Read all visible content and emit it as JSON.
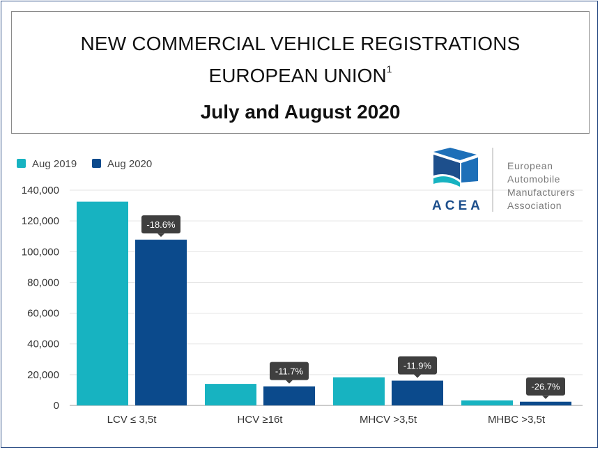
{
  "title": {
    "line1": "NEW COMMERCIAL VEHICLE REGISTRATIONS",
    "line2": "EUROPEAN UNION",
    "line2_sup": "1",
    "line3": "July and August 2020"
  },
  "logo": {
    "acronym": "ACEA",
    "lines": [
      "European",
      "Automobile",
      "Manufacturers",
      "Association"
    ]
  },
  "colors": {
    "aug2019": "#17b3c1",
    "aug2020": "#0b4a8c",
    "label_bg": "#3f3f3f",
    "grid": "#e3e3e3"
  },
  "chart_data": {
    "type": "bar",
    "categories": [
      "LCV ≤ 3,5t",
      "HCV ≥16t",
      "MHCV >3,5t",
      "MHBC >3,5t"
    ],
    "series": [
      {
        "name": "Aug 2019",
        "values": [
          132500,
          14000,
          18300,
          3300
        ]
      },
      {
        "name": "Aug 2020",
        "values": [
          107800,
          12400,
          16100,
          2400
        ]
      }
    ],
    "change_labels": [
      "-18.6%",
      "-11.7%",
      "-11.9%",
      "-26.7%"
    ],
    "ylim": [
      0,
      140000
    ],
    "yticks": [
      0,
      20000,
      40000,
      60000,
      80000,
      100000,
      120000,
      140000
    ],
    "ytick_labels": [
      "0",
      "20,000",
      "40,000",
      "60,000",
      "80,000",
      "100,000",
      "120,000",
      "140,000"
    ],
    "legend_position": "top-left",
    "grid": true,
    "xlabel": "",
    "ylabel": ""
  }
}
